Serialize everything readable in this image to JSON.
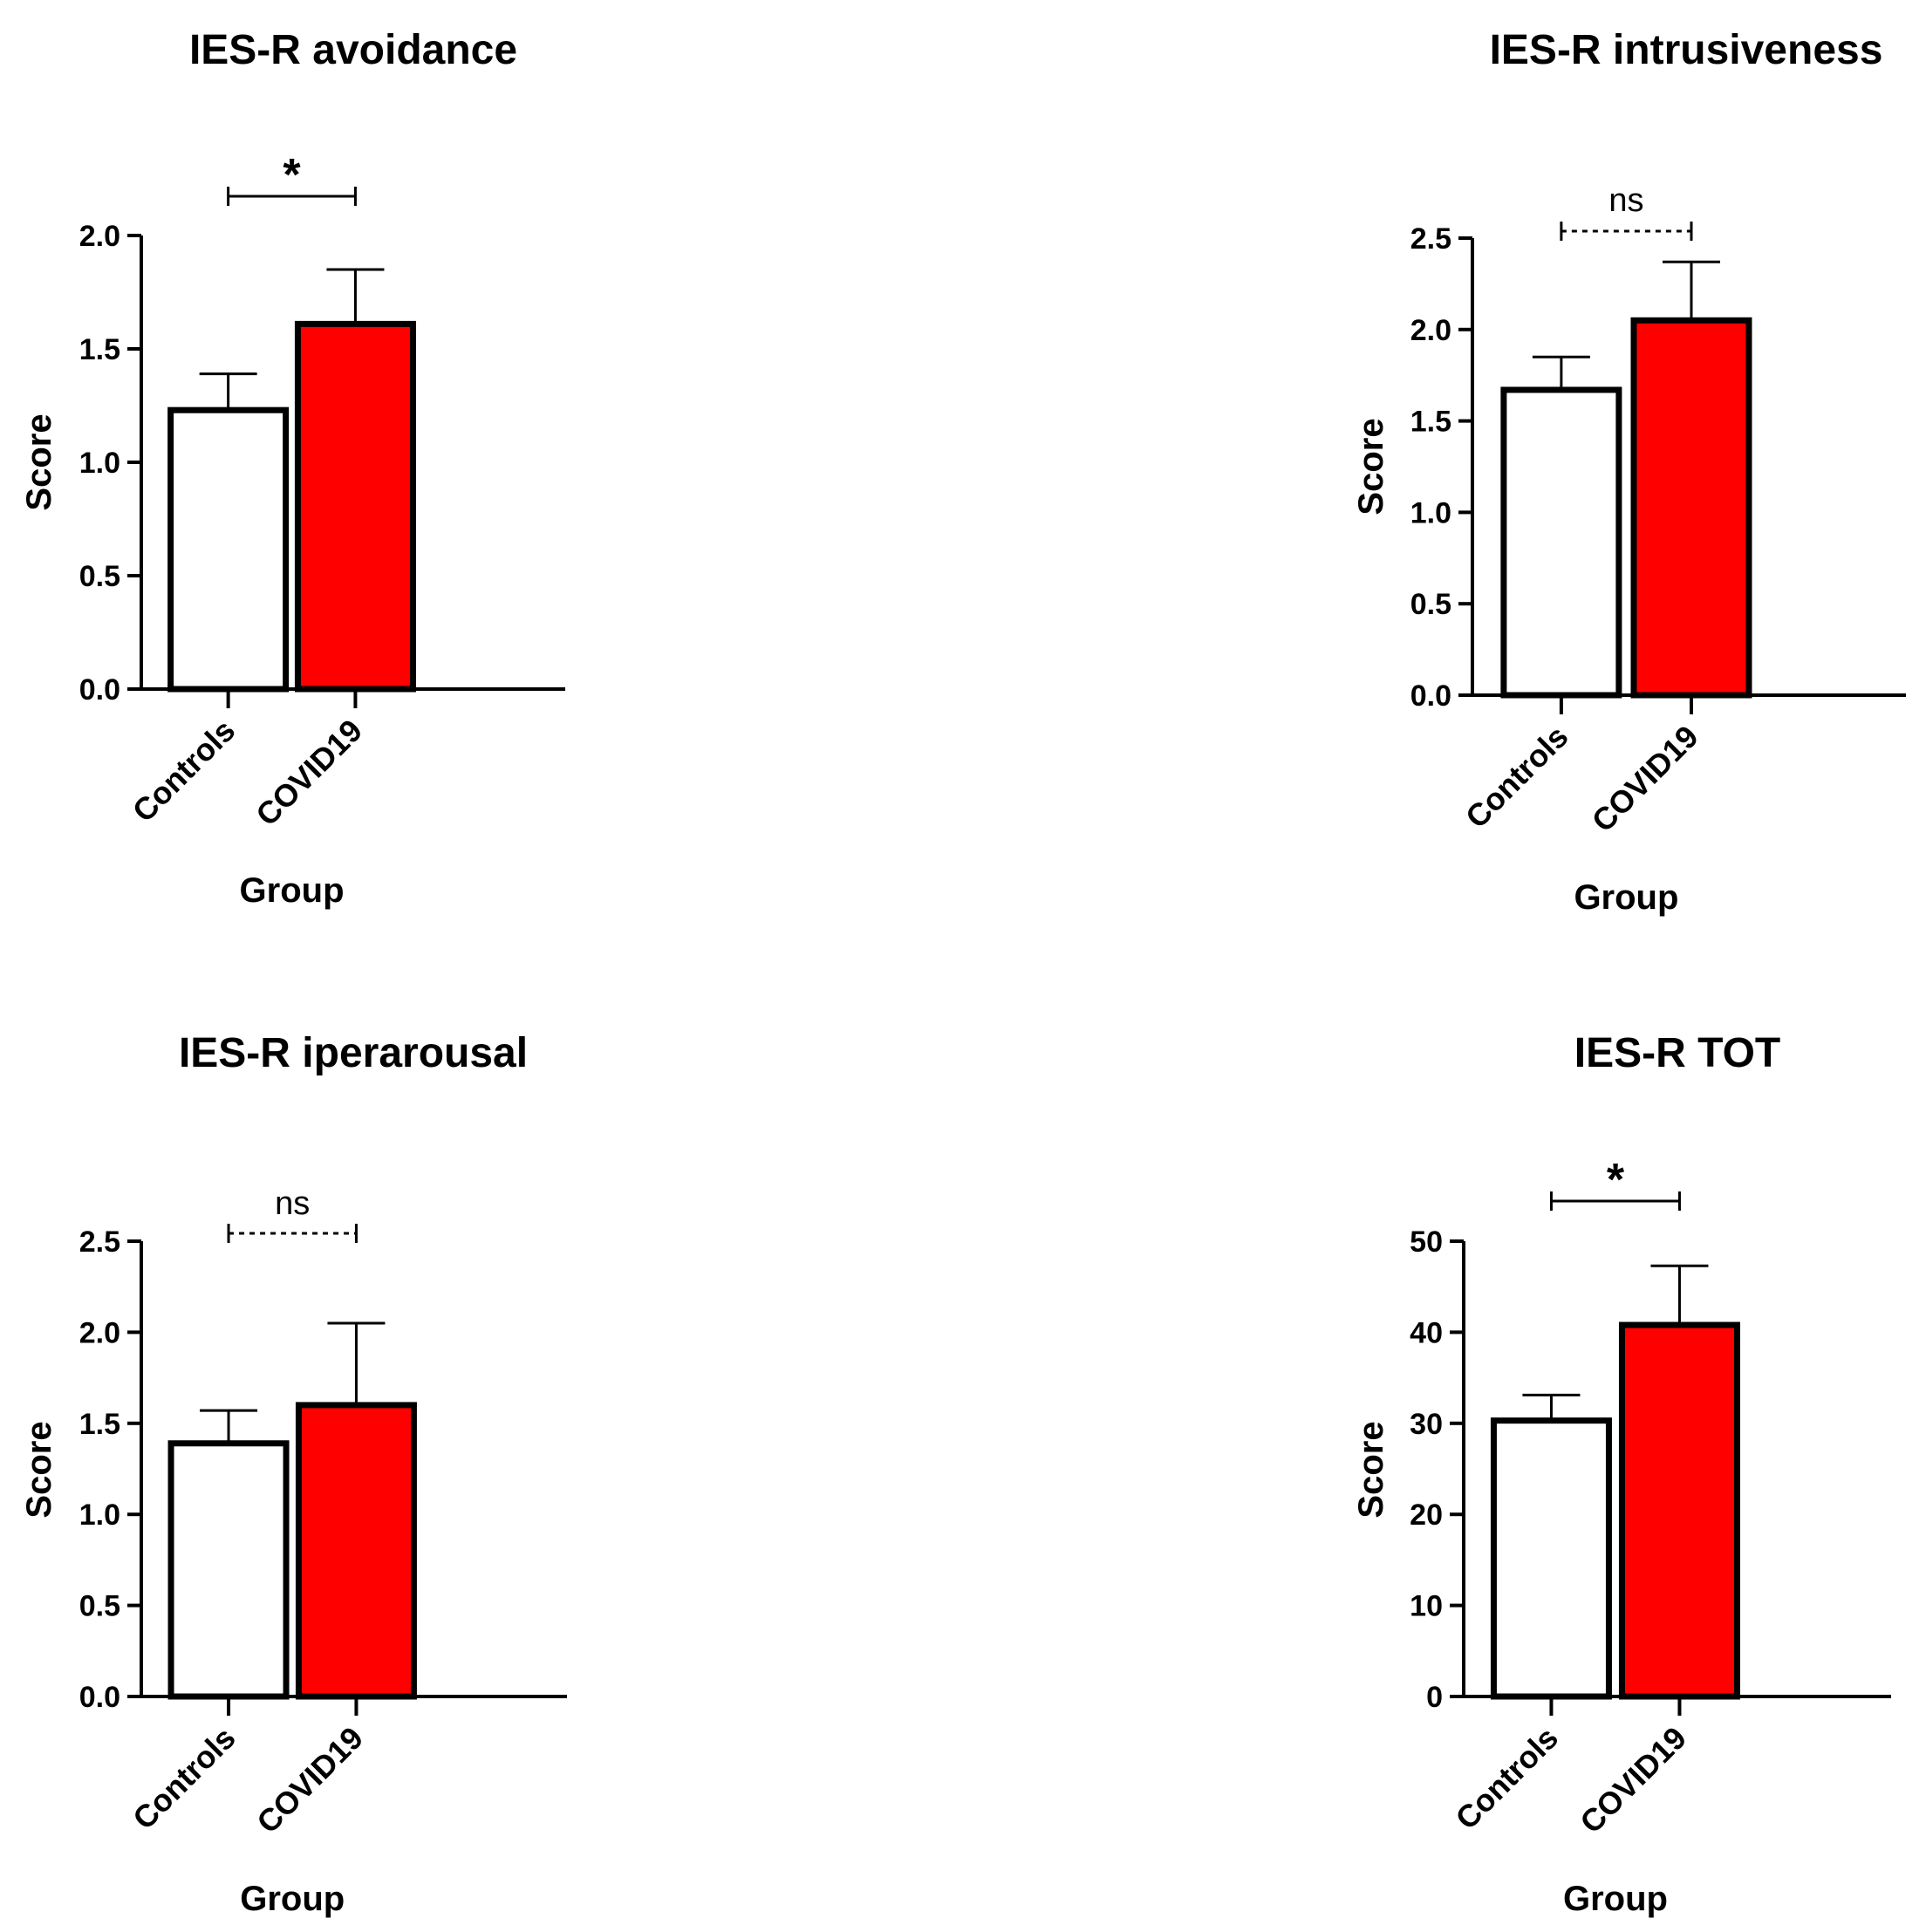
{
  "chart_data": [
    {
      "type": "bar",
      "title": "IES-R avoidance",
      "xlabel": "Group",
      "ylabel": "Score",
      "categories": [
        "Controls",
        "COVID19"
      ],
      "values": [
        1.23,
        1.61
      ],
      "errors": [
        0.16,
        0.24
      ],
      "colors": [
        "#ffffff",
        "#ff0000"
      ],
      "ylim": [
        0,
        2.0
      ],
      "yticks": [
        0.0,
        0.5,
        1.0,
        1.5,
        2.0
      ],
      "ytick_labels": [
        "0.0",
        "0.5",
        "1.0",
        "1.5",
        "2.0"
      ],
      "significance": {
        "label": "*",
        "style": "solid"
      }
    },
    {
      "type": "bar",
      "title": "IES-R intrusiveness",
      "xlabel": "Group",
      "ylabel": "Score",
      "categories": [
        "Controls",
        "COVID19"
      ],
      "values": [
        1.67,
        2.05
      ],
      "errors": [
        0.18,
        0.32
      ],
      "colors": [
        "#ffffff",
        "#ff0000"
      ],
      "ylim": [
        0,
        2.5
      ],
      "yticks": [
        0.0,
        0.5,
        1.0,
        1.5,
        2.0,
        2.5
      ],
      "ytick_labels": [
        "0.0",
        "0.5",
        "1.0",
        "1.5",
        "2.0",
        "2.5"
      ],
      "significance": {
        "label": "ns",
        "style": "dashed"
      }
    },
    {
      "type": "bar",
      "title": "IES-R iperarousal",
      "xlabel": "Group",
      "ylabel": "Score",
      "categories": [
        "Controls",
        "COVID19"
      ],
      "values": [
        1.39,
        1.6
      ],
      "errors": [
        0.18,
        0.45
      ],
      "colors": [
        "#ffffff",
        "#ff0000"
      ],
      "ylim": [
        0,
        2.5
      ],
      "yticks": [
        0.0,
        0.5,
        1.0,
        1.5,
        2.0,
        2.5
      ],
      "ytick_labels": [
        "0.0",
        "0.5",
        "1.0",
        "1.5",
        "2.0",
        "2.5"
      ],
      "significance": {
        "label": "ns",
        "style": "dashed"
      }
    },
    {
      "type": "bar",
      "title": "IES-R TOT",
      "xlabel": "Group",
      "ylabel": "Score",
      "categories": [
        "Controls",
        "COVID19"
      ],
      "values": [
        30.3,
        40.8
      ],
      "errors": [
        2.8,
        6.5
      ],
      "colors": [
        "#ffffff",
        "#ff0000"
      ],
      "ylim": [
        0,
        50
      ],
      "yticks": [
        0,
        10,
        20,
        30,
        40,
        50
      ],
      "ytick_labels": [
        "0",
        "10",
        "20",
        "30",
        "40",
        "50"
      ],
      "significance": {
        "label": "*",
        "style": "solid"
      }
    }
  ]
}
